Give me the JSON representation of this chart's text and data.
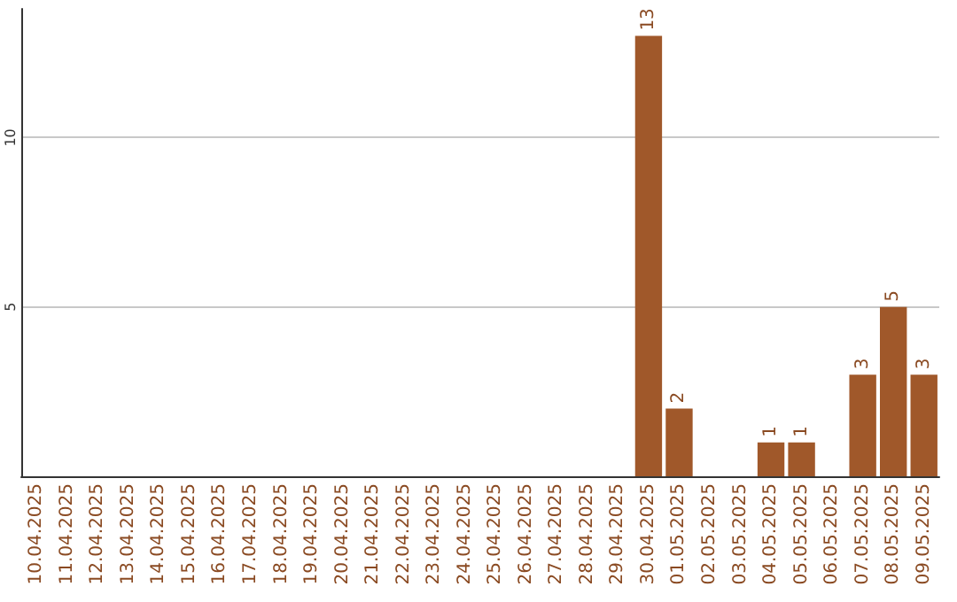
{
  "chart_data": {
    "type": "bar",
    "categories": [
      "10.04.2025",
      "11.04.2025",
      "12.04.2025",
      "13.04.2025",
      "14.04.2025",
      "15.04.2025",
      "16.04.2025",
      "17.04.2025",
      "18.04.2025",
      "19.04.2025",
      "20.04.2025",
      "21.04.2025",
      "22.04.2025",
      "23.04.2025",
      "24.04.2025",
      "25.04.2025",
      "26.04.2025",
      "27.04.2025",
      "28.04.2025",
      "29.04.2025",
      "30.04.2025",
      "01.05.2025",
      "02.05.2025",
      "03.05.2025",
      "04.05.2025",
      "05.05.2025",
      "06.05.2025",
      "07.05.2025",
      "08.05.2025",
      "09.05.2025"
    ],
    "values": [
      0,
      0,
      0,
      0,
      0,
      0,
      0,
      0,
      0,
      0,
      0,
      0,
      0,
      0,
      0,
      0,
      0,
      0,
      0,
      0,
      13,
      2,
      0,
      0,
      1,
      1,
      0,
      3,
      5,
      3
    ],
    "value_labels": [
      null,
      null,
      null,
      null,
      null,
      null,
      null,
      null,
      null,
      null,
      null,
      null,
      null,
      null,
      null,
      null,
      null,
      null,
      null,
      null,
      "13",
      "2",
      null,
      null,
      "1",
      "1",
      null,
      "3",
      "5",
      "3"
    ],
    "color": "#a0582a",
    "ylim": [
      0,
      13.8
    ],
    "yticks": [
      5,
      10
    ],
    "grid": "y"
  }
}
